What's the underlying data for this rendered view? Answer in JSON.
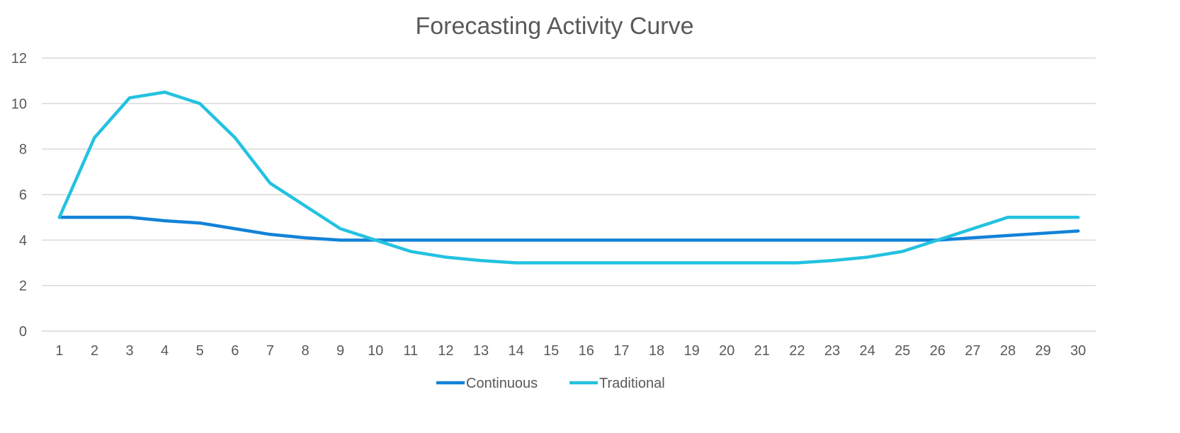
{
  "chart_data": {
    "type": "line",
    "title": "Forecasting Activity Curve",
    "xlabel": "",
    "ylabel": "",
    "categories": [
      1,
      2,
      3,
      4,
      5,
      6,
      7,
      8,
      9,
      10,
      11,
      12,
      13,
      14,
      15,
      16,
      17,
      18,
      19,
      20,
      21,
      22,
      23,
      24,
      25,
      26,
      27,
      28,
      29,
      30
    ],
    "ylim": [
      0,
      12
    ],
    "yticks": [
      0,
      2,
      4,
      6,
      8,
      10,
      12
    ],
    "grid": true,
    "legend": "bottom",
    "series": [
      {
        "name": "Continuous",
        "color": "#1282d8",
        "values": [
          5,
          5,
          5,
          4.85,
          4.75,
          4.5,
          4.25,
          4.1,
          4,
          4,
          4,
          4,
          4,
          4,
          4,
          4,
          4,
          4,
          4,
          4,
          4,
          4,
          4,
          4,
          4,
          4,
          4.1,
          4.2,
          4.3,
          4.4
        ]
      },
      {
        "name": "Traditional",
        "color": "#23c2e0",
        "values": [
          5,
          8.5,
          10.25,
          10.5,
          10,
          8.5,
          6.5,
          5.5,
          4.5,
          4,
          3.5,
          3.25,
          3.1,
          3,
          3,
          3,
          3,
          3,
          3,
          3,
          3,
          3,
          3.1,
          3.25,
          3.5,
          4,
          4.5,
          5,
          5,
          5
        ]
      }
    ]
  }
}
